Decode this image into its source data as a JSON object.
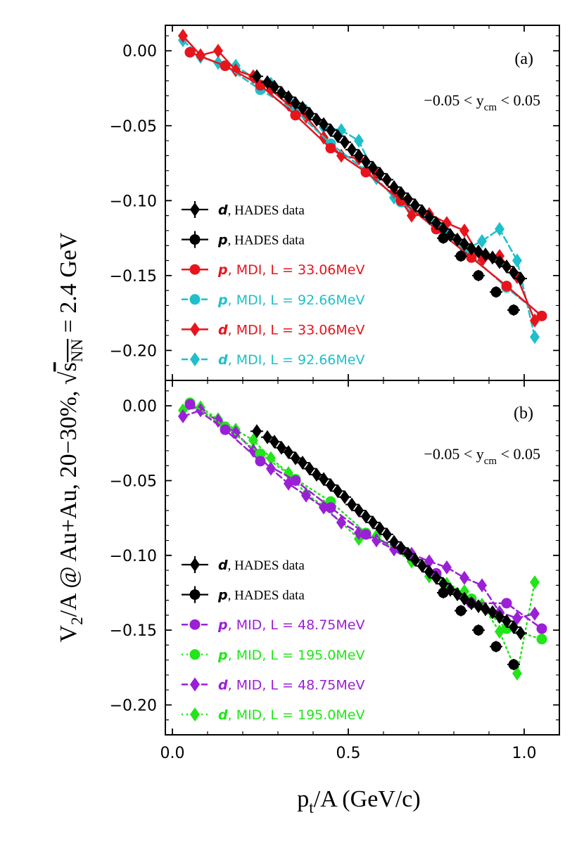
{
  "figure": {
    "ylabel": "V₂/A  @ Au+Au, 20−30%, √s_NN = 2.4 GeV",
    "ylabel_parts": {
      "main": "V",
      "sub": "2",
      "rest": "/A  @ Au+Au, 20−30%, ",
      "sqrt_s": "s",
      "sqrt_sub": "NN",
      "energy": " = 2.4 GeV"
    },
    "xlabel_parts": {
      "main": "p",
      "sub": "t",
      "rest": "/A (GeV/c)"
    }
  },
  "colors": {
    "hades": "#000000",
    "mdi_33": "#e8141c",
    "mdi_92": "#1fbfcc",
    "mid_48": "#9b1fd6",
    "mid_195": "#22e51a"
  },
  "chart_data": [
    {
      "type": "line",
      "panel_label": "(a)",
      "rapidity": {
        "pre": "−0.05 < y",
        "sub": "cm",
        "post": " < 0.05"
      },
      "xlim": [
        -0.02,
        1.1
      ],
      "ylim": [
        -0.22,
        0.017
      ],
      "xticks": [
        0.0,
        0.5,
        1.0
      ],
      "xtick_labels": [
        "0.0",
        "0.5",
        "1.0"
      ],
      "yticks": [
        0.0,
        -0.05,
        -0.1,
        -0.15,
        -0.2
      ],
      "ytick_labels": [
        "0.00",
        "−0.05",
        "−0.10",
        "−0.15",
        "−0.20"
      ],
      "legend": [
        {
          "particle": "d",
          "label": ", HADES data",
          "series": "hades_d"
        },
        {
          "particle": "p",
          "label": ", HADES data",
          "series": "hades_p"
        },
        {
          "particle": "p",
          "label": ", MDI, L = 33.06MeV",
          "series": "mdi33_p"
        },
        {
          "particle": "p",
          "label": ", MDI, L = 92.66MeV",
          "series": "mdi92_p"
        },
        {
          "particle": "d",
          "label": ", MDI, L = 33.06MeV",
          "series": "mdi33_d"
        },
        {
          "particle": "d",
          "label": ", MDI, L = 92.66MeV",
          "series": "mdi92_d"
        }
      ],
      "series": [
        {
          "name": "hades_d",
          "color": "hades",
          "marker": "diamond",
          "line": "none",
          "x": [
            0.24,
            0.27,
            0.29,
            0.31,
            0.33,
            0.35,
            0.37,
            0.39,
            0.41,
            0.43,
            0.45,
            0.47,
            0.49,
            0.51,
            0.53,
            0.55,
            0.57,
            0.59,
            0.61,
            0.63,
            0.65,
            0.67,
            0.69,
            0.71,
            0.73,
            0.75,
            0.77,
            0.79,
            0.81,
            0.83,
            0.85,
            0.87,
            0.89,
            0.91,
            0.93,
            0.95,
            0.97,
            0.99
          ],
          "y": [
            -0.017,
            -0.021,
            -0.024,
            -0.028,
            -0.031,
            -0.035,
            -0.038,
            -0.042,
            -0.046,
            -0.049,
            -0.053,
            -0.057,
            -0.061,
            -0.066,
            -0.07,
            -0.074,
            -0.078,
            -0.082,
            -0.086,
            -0.091,
            -0.095,
            -0.099,
            -0.103,
            -0.107,
            -0.111,
            -0.115,
            -0.119,
            -0.123,
            -0.126,
            -0.129,
            -0.132,
            -0.134,
            -0.136,
            -0.138,
            -0.141,
            -0.144,
            -0.148,
            -0.152
          ]
        },
        {
          "name": "hades_p",
          "color": "hades",
          "marker": "circle",
          "line": "none",
          "x": [
            0.77,
            0.82,
            0.87,
            0.92,
            0.97
          ],
          "y": [
            -0.125,
            -0.137,
            -0.15,
            -0.161,
            -0.173
          ]
        },
        {
          "name": "mdi33_p",
          "color": "mdi_33",
          "marker": "circle",
          "line": "solid",
          "x": [
            0.05,
            0.15,
            0.25,
            0.35,
            0.45,
            0.55,
            0.65,
            0.75,
            0.85,
            0.95,
            1.05
          ],
          "y": [
            -0.001,
            -0.01,
            -0.023,
            -0.043,
            -0.065,
            -0.081,
            -0.1,
            -0.119,
            -0.138,
            -0.157,
            -0.177
          ]
        },
        {
          "name": "mdi92_p",
          "color": "mdi_92",
          "marker": "circle",
          "line": "dashed",
          "x": [
            0.05,
            0.15,
            0.25,
            0.35,
            0.45,
            0.55,
            0.65,
            0.75,
            0.85,
            0.95,
            1.05
          ],
          "y": [
            -0.001,
            -0.01,
            -0.026,
            -0.04,
            -0.062,
            -0.08,
            -0.101,
            -0.116,
            -0.137,
            -0.158,
            -0.177
          ]
        },
        {
          "name": "mdi33_d",
          "color": "mdi_33",
          "marker": "diamond",
          "line": "solid",
          "x": [
            0.03,
            0.08,
            0.13,
            0.18,
            0.23,
            0.28,
            0.33,
            0.38,
            0.43,
            0.48,
            0.53,
            0.58,
            0.63,
            0.68,
            0.73,
            0.78,
            0.83,
            0.88,
            0.93,
            0.98,
            1.03
          ],
          "y": [
            0.01,
            -0.003,
            0.0,
            -0.013,
            -0.017,
            -0.026,
            -0.036,
            -0.044,
            -0.058,
            -0.07,
            -0.072,
            -0.082,
            -0.094,
            -0.11,
            -0.109,
            -0.115,
            -0.12,
            -0.14,
            -0.137,
            -0.151,
            -0.18
          ]
        },
        {
          "name": "mdi92_d",
          "color": "mdi_92",
          "marker": "diamond",
          "line": "dashed",
          "x": [
            0.03,
            0.08,
            0.13,
            0.18,
            0.23,
            0.28,
            0.33,
            0.38,
            0.43,
            0.48,
            0.53,
            0.58,
            0.63,
            0.68,
            0.73,
            0.78,
            0.83,
            0.88,
            0.93,
            0.98,
            1.03
          ],
          "y": [
            0.007,
            -0.004,
            -0.008,
            -0.01,
            -0.018,
            -0.022,
            -0.033,
            -0.04,
            -0.051,
            -0.053,
            -0.06,
            -0.085,
            -0.098,
            -0.107,
            -0.112,
            -0.122,
            -0.133,
            -0.127,
            -0.119,
            -0.14,
            -0.191
          ]
        }
      ]
    },
    {
      "type": "line",
      "panel_label": "(b)",
      "rapidity": {
        "pre": "−0.05 < y",
        "sub": "cm",
        "post": " < 0.05"
      },
      "xlim": [
        -0.02,
        1.1
      ],
      "ylim": [
        -0.22,
        0.017
      ],
      "xticks": [
        0.0,
        0.5,
        1.0
      ],
      "xtick_labels": [
        "0.0",
        "0.5",
        "1.0"
      ],
      "yticks": [
        0.0,
        -0.05,
        -0.1,
        -0.15,
        -0.2
      ],
      "ytick_labels": [
        "0.00",
        "−0.05",
        "−0.10",
        "−0.15",
        "−0.20"
      ],
      "legend": [
        {
          "particle": "d",
          "label": ", HADES data",
          "series": "hades_d"
        },
        {
          "particle": "p",
          "label": ", HADES data",
          "series": "hades_p"
        },
        {
          "particle": "p",
          "label": ", MID, L = 48.75MeV",
          "series": "mid48_p"
        },
        {
          "particle": "p",
          "label": ", MID, L = 195.0MeV",
          "series": "mid195_p"
        },
        {
          "particle": "d",
          "label": ", MID, L = 48.75MeV",
          "series": "mid48_d"
        },
        {
          "particle": "d",
          "label": ", MID, L = 195.0MeV",
          "series": "mid195_d"
        }
      ],
      "series": [
        {
          "name": "hades_d",
          "color": "hades",
          "marker": "diamond",
          "line": "none",
          "x": [
            0.24,
            0.27,
            0.29,
            0.31,
            0.33,
            0.35,
            0.37,
            0.39,
            0.41,
            0.43,
            0.45,
            0.47,
            0.49,
            0.51,
            0.53,
            0.55,
            0.57,
            0.59,
            0.61,
            0.63,
            0.65,
            0.67,
            0.69,
            0.71,
            0.73,
            0.75,
            0.77,
            0.79,
            0.81,
            0.83,
            0.85,
            0.87,
            0.89,
            0.91,
            0.93,
            0.95,
            0.97,
            0.99
          ],
          "y": [
            -0.017,
            -0.021,
            -0.024,
            -0.028,
            -0.031,
            -0.035,
            -0.038,
            -0.042,
            -0.046,
            -0.049,
            -0.053,
            -0.057,
            -0.061,
            -0.066,
            -0.07,
            -0.074,
            -0.078,
            -0.082,
            -0.086,
            -0.091,
            -0.095,
            -0.099,
            -0.103,
            -0.107,
            -0.111,
            -0.115,
            -0.119,
            -0.123,
            -0.126,
            -0.129,
            -0.132,
            -0.134,
            -0.136,
            -0.138,
            -0.141,
            -0.144,
            -0.148,
            -0.152
          ]
        },
        {
          "name": "hades_p",
          "color": "hades",
          "marker": "circle",
          "line": "none",
          "x": [
            0.77,
            0.82,
            0.87,
            0.92,
            0.97
          ],
          "y": [
            -0.125,
            -0.137,
            -0.15,
            -0.161,
            -0.173
          ]
        },
        {
          "name": "mid48_p",
          "color": "mid_48",
          "marker": "circle",
          "line": "dashed",
          "x": [
            0.05,
            0.15,
            0.25,
            0.35,
            0.45,
            0.55,
            0.65,
            0.75,
            0.85,
            0.95,
            1.05
          ],
          "y": [
            0.001,
            -0.016,
            -0.037,
            -0.05,
            -0.068,
            -0.086,
            -0.096,
            -0.112,
            -0.132,
            -0.132,
            -0.149
          ]
        },
        {
          "name": "mid195_p",
          "color": "mid_195",
          "marker": "circle",
          "line": "dotted",
          "x": [
            0.05,
            0.15,
            0.25,
            0.35,
            0.45,
            0.55,
            0.65,
            0.75,
            0.85,
            0.95,
            1.05
          ],
          "y": [
            0.002,
            -0.014,
            -0.032,
            -0.049,
            -0.064,
            -0.085,
            -0.096,
            -0.114,
            -0.129,
            -0.149,
            -0.156
          ]
        },
        {
          "name": "mid48_d",
          "color": "mid_48",
          "marker": "diamond",
          "line": "dashed",
          "x": [
            0.03,
            0.08,
            0.13,
            0.18,
            0.23,
            0.28,
            0.33,
            0.38,
            0.43,
            0.48,
            0.53,
            0.58,
            0.63,
            0.68,
            0.73,
            0.78,
            0.83,
            0.88,
            0.93,
            0.98,
            1.03
          ],
          "y": [
            -0.007,
            -0.003,
            -0.01,
            -0.018,
            -0.03,
            -0.042,
            -0.052,
            -0.06,
            -0.068,
            -0.078,
            -0.085,
            -0.09,
            -0.096,
            -0.099,
            -0.104,
            -0.108,
            -0.115,
            -0.12,
            -0.138,
            -0.142,
            -0.139
          ]
        },
        {
          "name": "mid195_d",
          "color": "mid_195",
          "marker": "diamond",
          "line": "dotted",
          "x": [
            0.03,
            0.08,
            0.13,
            0.18,
            0.23,
            0.28,
            0.33,
            0.38,
            0.43,
            0.48,
            0.53,
            0.58,
            0.63,
            0.68,
            0.73,
            0.78,
            0.83,
            0.88,
            0.93,
            0.98,
            1.03
          ],
          "y": [
            -0.003,
            -0.001,
            -0.009,
            -0.016,
            -0.023,
            -0.035,
            -0.045,
            -0.059,
            -0.067,
            -0.078,
            -0.089,
            -0.087,
            -0.096,
            -0.104,
            -0.114,
            -0.119,
            -0.124,
            -0.133,
            -0.151,
            -0.179,
            -0.118
          ]
        }
      ]
    }
  ]
}
